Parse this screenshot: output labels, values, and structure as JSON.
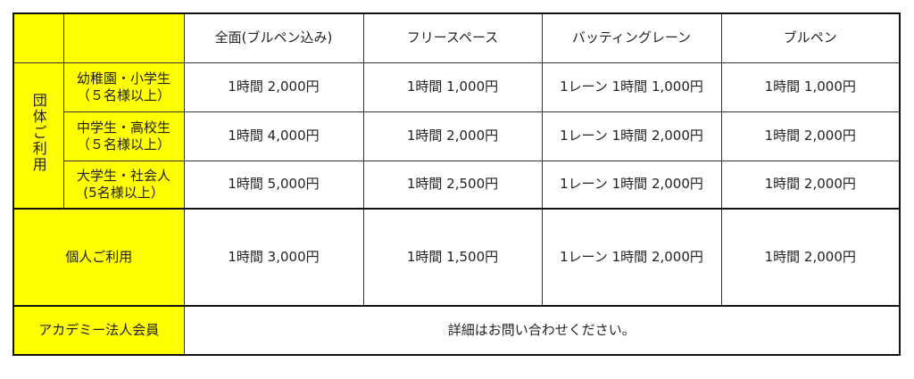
{
  "colors": {
    "label_bg": "#ffff00",
    "border": "#333333"
  },
  "columns": [
    "全面(ブルペン込み)",
    "フリースペース",
    "バッティングレーン",
    "ブルペン"
  ],
  "group_label": "団体ご利用",
  "group_rows": [
    {
      "label_line1": "幼稚園・小学生",
      "label_line2": "（５名様以上）",
      "prices": [
        "1時間 2,000円",
        "1時間 1,000円",
        "1レーン 1時間 1,000円",
        "1時間 1,000円"
      ]
    },
    {
      "label_line1": "中学生・高校生",
      "label_line2": "（５名様以上）",
      "prices": [
        "1時間 4,000円",
        "1時間 2,000円",
        "1レーン 1時間 2,000円",
        "1時間 2,000円"
      ]
    },
    {
      "label_line1": "大学生・社会人",
      "label_line2": "(5名様以上）",
      "prices": [
        "1時間 5,000円",
        "1時間 2,500円",
        "1レーン 1時間 2,000円",
        "1時間 2,000円"
      ]
    }
  ],
  "individual": {
    "label": "個人ご利用",
    "prices": [
      "1時間 3,000円",
      "1時間 1,500円",
      "1レーン 1時間 2,000円",
      "1時間 2,000円"
    ]
  },
  "academy": {
    "label": "アカデミー法人会員",
    "note": "詳細はお問い合わせください。"
  }
}
